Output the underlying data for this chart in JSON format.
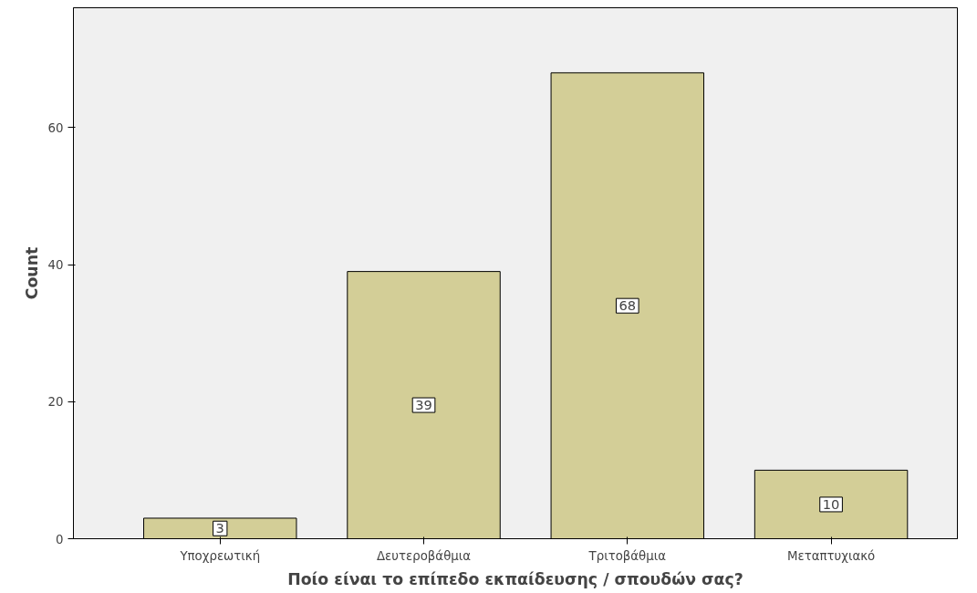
{
  "chart_data": {
    "type": "bar",
    "xlabel": "Ποίο είναι το επίπεδο εκπαίδευσης / σπουδών σας?",
    "ylabel": "Count",
    "categories": [
      "Υποχρεωτική",
      "Δευτεροβάθμια",
      "Τριτοβάθμια",
      "Μεταπτυχιακό"
    ],
    "values": [
      3,
      39,
      68,
      10
    ],
    "color": "#d3ce97",
    "ylim": [
      0,
      77.5
    ],
    "yticks": [
      0,
      20,
      40,
      60
    ],
    "grid": false,
    "data_labels": true
  }
}
